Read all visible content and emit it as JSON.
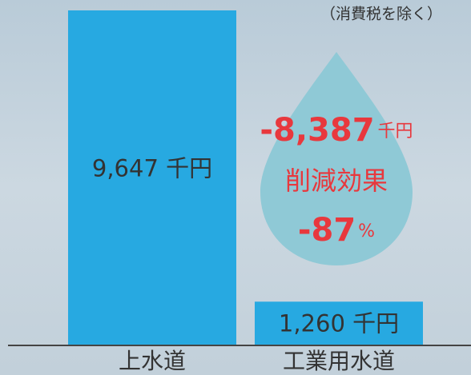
{
  "chart_data": {
    "type": "bar",
    "note": "（消費税を除く）",
    "categories": [
      "上水道",
      "工業用水道"
    ],
    "values": [
      9647,
      1260
    ],
    "value_labels": [
      "9,647 千円",
      "1,260 千円"
    ],
    "color": "#27a9e1",
    "annotation": {
      "reduction": "-8,387",
      "reduction_unit": "千円",
      "label": "削減効果",
      "percent": "-87",
      "percent_unit": "%"
    }
  }
}
